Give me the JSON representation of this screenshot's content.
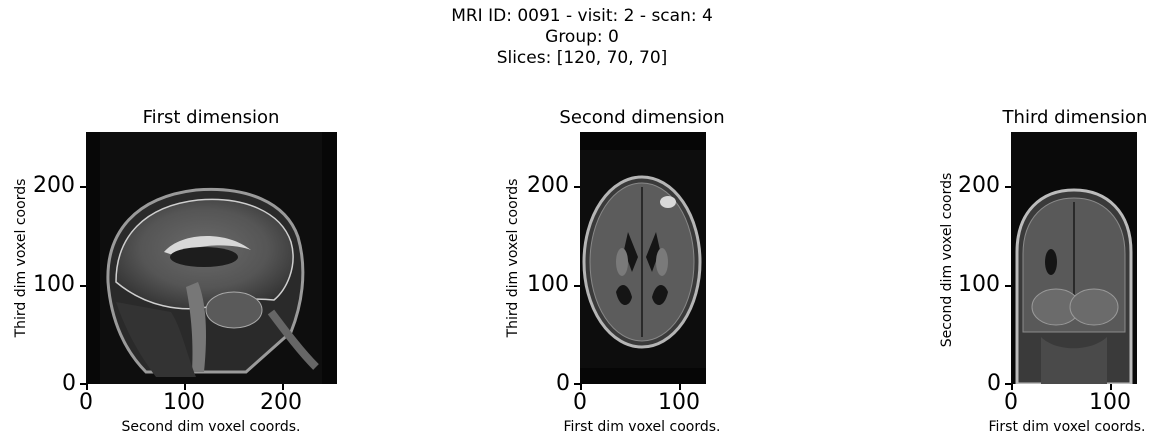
{
  "suptitle": {
    "line1": "MRI ID: 0091 - visit: 2 - scan: 4",
    "line2": "Group: 0",
    "line3": "Slices: [120, 70, 70]"
  },
  "panels": [
    {
      "title": "First dimension",
      "xlabel": "Second dim voxel coords.",
      "ylabel": "Third dim voxel coords",
      "yticks": [
        "200",
        "100",
        "0"
      ],
      "xticks": [
        "0",
        "100",
        "200"
      ]
    },
    {
      "title": "Second dimension",
      "xlabel": "First dim voxel coords.",
      "ylabel": "Third dim voxel coords",
      "yticks": [
        "200",
        "100",
        "0"
      ],
      "xticks": [
        "0",
        "100"
      ]
    },
    {
      "title": "Third dimension",
      "xlabel": "First dim voxel coords.",
      "ylabel": "Second dim voxel coords",
      "yticks": [
        "200",
        "100",
        "0"
      ],
      "xticks": [
        "0",
        "100"
      ]
    }
  ]
}
